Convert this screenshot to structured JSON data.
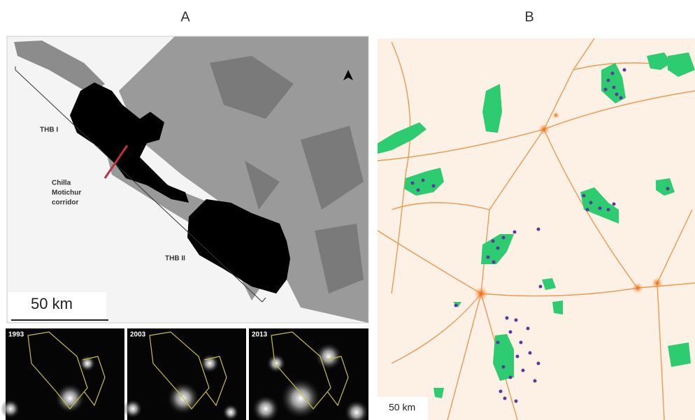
{
  "panel_a": {
    "label": "A",
    "labels": {
      "thb1": "THB I",
      "corridor": [
        "Chilla",
        "Motichur",
        "corridor"
      ],
      "thb2": "THB II"
    },
    "scale_bar": "50 km",
    "insets": [
      "1993",
      "2003",
      "2013"
    ]
  },
  "panel_b": {
    "label": "B",
    "scale_bar": "50 km"
  }
}
